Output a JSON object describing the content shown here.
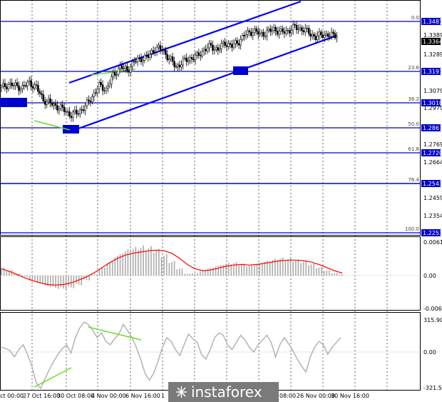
{
  "chart_data": [
    {
      "type": "candlestick",
      "pane": "price",
      "ylim": [
        1.22,
        1.355
      ],
      "right_ticks": [
        "1.3389",
        "1.3289",
        "1.3079",
        "1.2979",
        "1.2769",
        "1.2664",
        "1.2459",
        "1.2354"
      ],
      "fib_levels": [
        {
          "label": "0.0",
          "value": "1.3481"
        },
        {
          "label": "23.6",
          "value": "1.3191"
        },
        {
          "label": "38.2",
          "value": "1.3010"
        },
        {
          "label": "50.0",
          "value": "1.2867"
        },
        {
          "label": "61.8",
          "value": "1.2720"
        },
        {
          "label": "76.4",
          "value": "1.2543"
        },
        {
          "label": "100.0",
          "value": "1.2253"
        }
      ],
      "current_price": "1.3364",
      "close_path": [
        [
          0,
          1.305
        ],
        [
          4,
          1.307
        ],
        [
          8,
          1.306
        ],
        [
          12,
          1.305
        ],
        [
          16,
          1.308
        ],
        [
          20,
          1.305
        ],
        [
          24,
          1.298
        ],
        [
          28,
          1.296
        ],
        [
          32,
          1.294
        ],
        [
          36,
          1.292
        ],
        [
          40,
          1.289
        ],
        [
          44,
          1.291
        ],
        [
          48,
          1.294
        ],
        [
          52,
          1.3
        ],
        [
          56,
          1.306
        ],
        [
          60,
          1.304
        ],
        [
          64,
          1.312
        ],
        [
          68,
          1.317
        ],
        [
          72,
          1.315
        ],
        [
          76,
          1.32
        ],
        [
          80,
          1.322
        ],
        [
          84,
          1.323
        ],
        [
          88,
          1.328
        ],
        [
          92,
          1.327
        ],
        [
          96,
          1.322
        ],
        [
          100,
          1.317
        ],
        [
          104,
          1.32
        ],
        [
          108,
          1.322
        ],
        [
          112,
          1.323
        ],
        [
          116,
          1.327
        ],
        [
          120,
          1.329
        ],
        [
          124,
          1.327
        ],
        [
          128,
          1.331
        ],
        [
          132,
          1.329
        ],
        [
          136,
          1.332
        ],
        [
          140,
          1.336
        ],
        [
          144,
          1.338
        ],
        [
          148,
          1.336
        ],
        [
          152,
          1.337
        ],
        [
          156,
          1.339
        ],
        [
          160,
          1.337
        ],
        [
          164,
          1.338
        ],
        [
          168,
          1.34
        ],
        [
          172,
          1.339
        ],
        [
          176,
          1.337
        ],
        [
          180,
          1.334
        ],
        [
          184,
          1.336
        ],
        [
          188,
          1.335
        ],
        [
          192,
          1.336
        ]
      ]
    },
    {
      "type": "bar",
      "pane": "MACD",
      "ylim": [
        -0.00604,
        0.0061
      ],
      "right_ticks": [
        "0.0061",
        "0.00",
        "-0.00604"
      ],
      "histogram": [
        0.0012,
        0.0008,
        0.0003,
        -0.0002,
        -0.0008,
        -0.0014,
        -0.0019,
        -0.0022,
        -0.0023,
        -0.0021,
        -0.0016,
        -0.0008,
        0.0002,
        0.0012,
        0.0022,
        0.0032,
        0.0039,
        0.0043,
        0.0045,
        0.0044,
        0.004,
        0.0032,
        0.0022,
        0.0011,
        0.0003,
        0.0004,
        0.0008,
        0.0012,
        0.0016,
        0.0019,
        0.002,
        0.0018,
        0.0016,
        0.0018,
        0.0022,
        0.0025,
        0.0027,
        0.0026,
        0.0024,
        0.0022,
        0.0018,
        0.0013,
        0.0008,
        0.0004,
        0.0002
      ],
      "signal": [
        0.0011,
        0.0007,
        0.0002,
        -0.0004,
        -0.0009,
        -0.0013,
        -0.0016,
        -0.0017,
        -0.0016,
        -0.0013,
        -0.0008,
        -0.0002,
        0.0005,
        0.0013,
        0.0021,
        0.0028,
        0.0033,
        0.0036,
        0.0038,
        0.004,
        0.0041,
        0.004,
        0.0036,
        0.0028,
        0.0018,
        0.0011,
        0.0008,
        0.0009,
        0.0012,
        0.0015,
        0.0017,
        0.0018,
        0.0017,
        0.0018,
        0.002,
        0.0022,
        0.0024,
        0.0025,
        0.0025,
        0.0024,
        0.0022,
        0.0018,
        0.0013,
        0.0008,
        0.0004
      ]
    },
    {
      "type": "line",
      "pane": "CCI",
      "ylim": [
        -321.547,
        315.9023
      ],
      "right_ticks": [
        "315.9023",
        "0.00",
        "-321.547"
      ],
      "values": [
        40,
        30,
        10,
        -40,
        20,
        60,
        -20,
        -120,
        -260,
        -310,
        -230,
        -150,
        -80,
        -20,
        30,
        60,
        -10,
        120,
        200,
        250,
        230,
        180,
        120,
        160,
        90,
        60,
        110,
        150,
        230,
        180,
        120,
        40,
        -60,
        -180,
        -240,
        -180,
        -80,
        40,
        120,
        90,
        20,
        -30,
        60,
        150,
        110,
        80,
        -20,
        -60,
        20,
        120,
        160,
        140,
        60,
        20,
        80,
        140,
        100,
        40,
        0,
        60,
        100,
        140,
        80,
        -40,
        60,
        120,
        70,
        10,
        -60,
        -120,
        -170,
        -40,
        40,
        90,
        60,
        -20,
        40,
        80,
        120
      ]
    }
  ],
  "x_labels": [
    "ct 00:00",
    "27 Oct 16:00",
    "30 Oct 08:00",
    "4 Nov 00:00",
    "6 Nov 16:00",
    "1",
    "08:00",
    "26 Nov 00:00",
    "30 Nov 16:00"
  ],
  "watermark": "instaforex",
  "colors": {
    "channel": "#0000ff",
    "fib_line": "#0000cd",
    "box": "#0000cd",
    "divergence": "#66dd22",
    "macd_hist": "#aaaaaa",
    "macd_signal": "#ff0000",
    "cci": "#b4b4b4",
    "candle": "#000000"
  }
}
